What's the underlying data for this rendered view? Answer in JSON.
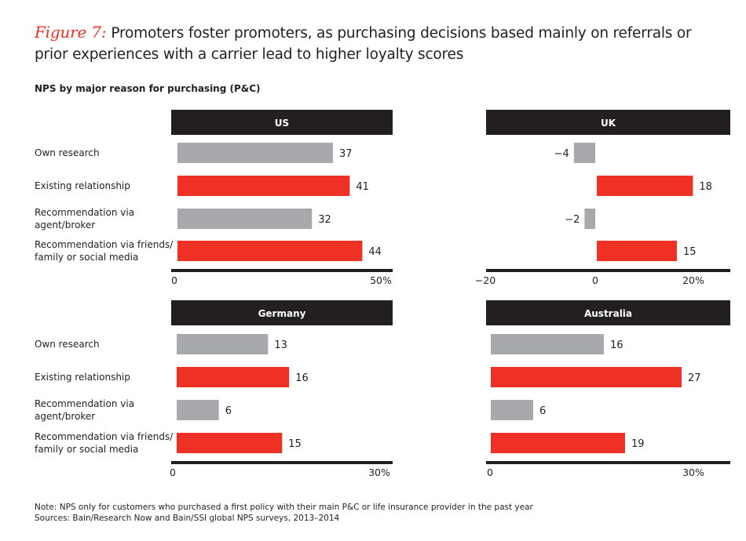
{
  "title": {
    "figure_label": "Figure 7:",
    "text": "Promoters foster promoters, as purchasing decisions based mainly on referrals or prior experiences with a carrier lead to higher loyalty scores"
  },
  "subtitle": "NPS by major reason for purchasing (P&C)",
  "colors": {
    "gray": "#a7a9ac",
    "red": "#ee3124",
    "header": "#231f20"
  },
  "chart_data": [
    {
      "type": "bar",
      "orientation": "horizontal",
      "title": "US",
      "categories": [
        "Own research",
        "Existing relationship",
        "Recommendation via agent/broker",
        "Recommendation via friends/ family or social media"
      ],
      "values": [
        37,
        41,
        32,
        44
      ],
      "bar_colors": [
        "gray",
        "red",
        "gray",
        "red"
      ],
      "xlim": [
        0,
        50
      ],
      "tick_labels": [
        "0",
        "50%"
      ]
    },
    {
      "type": "bar",
      "orientation": "horizontal",
      "title": "UK",
      "categories": [
        "Own research",
        "Existing relationship",
        "Recommendation via agent/broker",
        "Recommendation via friends/ family or social media"
      ],
      "values": [
        -4,
        18,
        -2,
        15
      ],
      "bar_colors": [
        "gray",
        "red",
        "gray",
        "red"
      ],
      "xlim": [
        -20,
        20
      ],
      "tick_labels": [
        "−20",
        "0",
        "20%"
      ]
    },
    {
      "type": "bar",
      "orientation": "horizontal",
      "title": "Germany",
      "categories": [
        "Own research",
        "Existing relationship",
        "Recommendation via agent/broker",
        "Recommendation via friends/ family or social media"
      ],
      "values": [
        13,
        16,
        6,
        15
      ],
      "bar_colors": [
        "gray",
        "red",
        "gray",
        "red"
      ],
      "xlim": [
        0,
        30
      ],
      "tick_labels": [
        "0",
        "30%"
      ]
    },
    {
      "type": "bar",
      "orientation": "horizontal",
      "title": "Australia",
      "categories": [
        "Own research",
        "Existing relationship",
        "Recommendation via agent/broker",
        "Recommendation via friends/ family or social media"
      ],
      "values": [
        16,
        27,
        6,
        19
      ],
      "bar_colors": [
        "gray",
        "red",
        "gray",
        "red"
      ],
      "xlim": [
        0,
        30
      ],
      "tick_labels": [
        "0",
        "30%"
      ]
    }
  ],
  "row_labels_top": [
    "Own research",
    "Existing relationship",
    "Recommendation via\nagent/broker",
    "Recommendation via friends/\nfamily or social media"
  ],
  "row_labels_bottom": [
    "Own research",
    "Existing relationship",
    "Recommendation via\nagent/broker",
    "Recommendation via friends/\nfamily or social media"
  ],
  "notes": {
    "note": "Note: NPS only for customers who purchased a first policy with their main P&C or life insurance provider in the past year",
    "sources": "Sources: Bain/Research Now and Bain/SSI global NPS surveys, 2013–2014"
  }
}
